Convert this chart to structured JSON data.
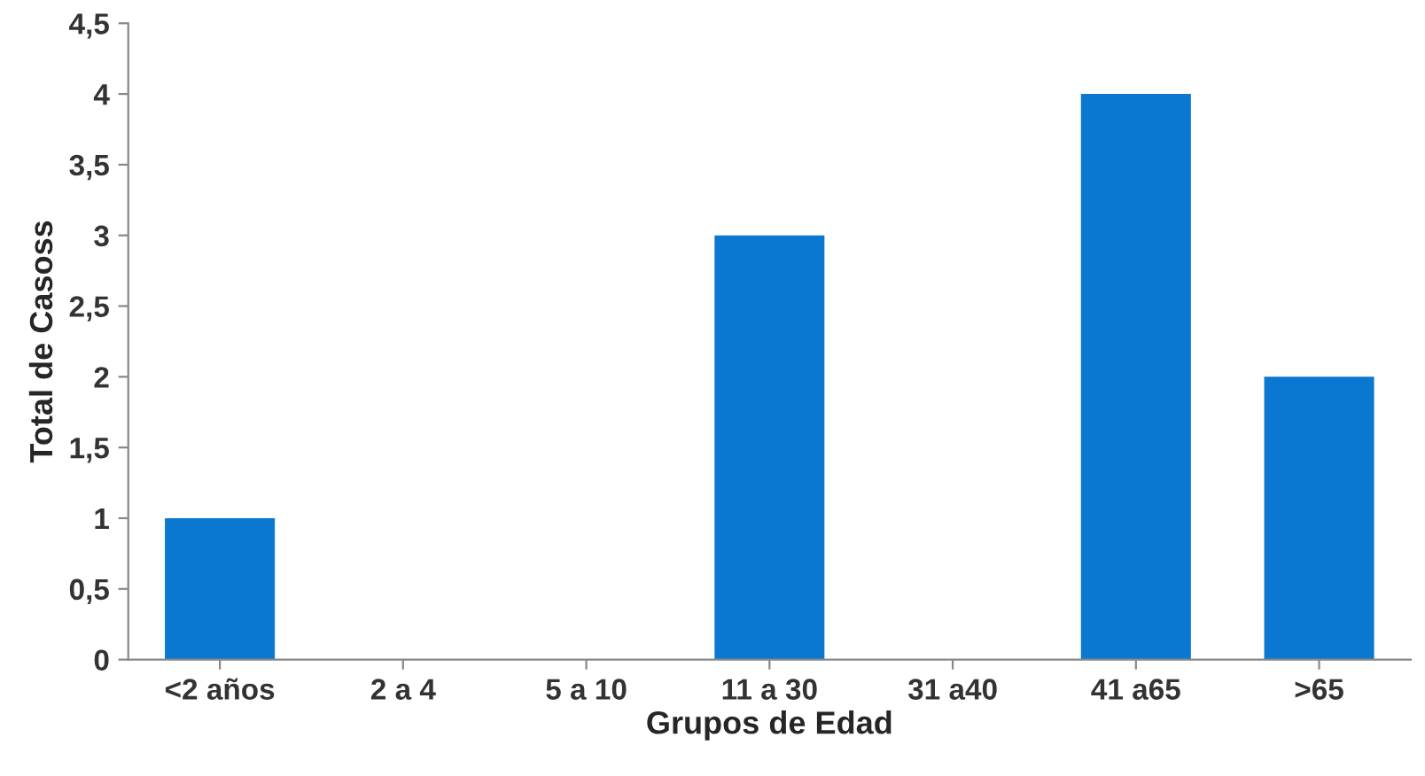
{
  "chart_data": {
    "type": "bar",
    "xlabel": "Grupos de Edad",
    "ylabel": "Total de Casoss",
    "categories": [
      "<2 años",
      "2 a 4",
      "5 a 10",
      "11 a 30",
      "31 a40",
      "41 a65",
      ">65"
    ],
    "values": [
      1,
      0,
      0,
      3,
      0,
      4,
      2
    ],
    "color": "#0a78d0",
    "ylim": [
      0,
      4.5
    ],
    "yticks": [
      0,
      {
        "value": 0.5,
        "label": "0,5"
      },
      1,
      {
        "value": 1.5,
        "label": "1,5"
      },
      2,
      {
        "value": 2.5,
        "label": "2,5"
      },
      3,
      {
        "value": 3.5,
        "label": "3,5"
      },
      4,
      {
        "value": 4.5,
        "label": "4,5"
      }
    ],
    "grid": false
  }
}
